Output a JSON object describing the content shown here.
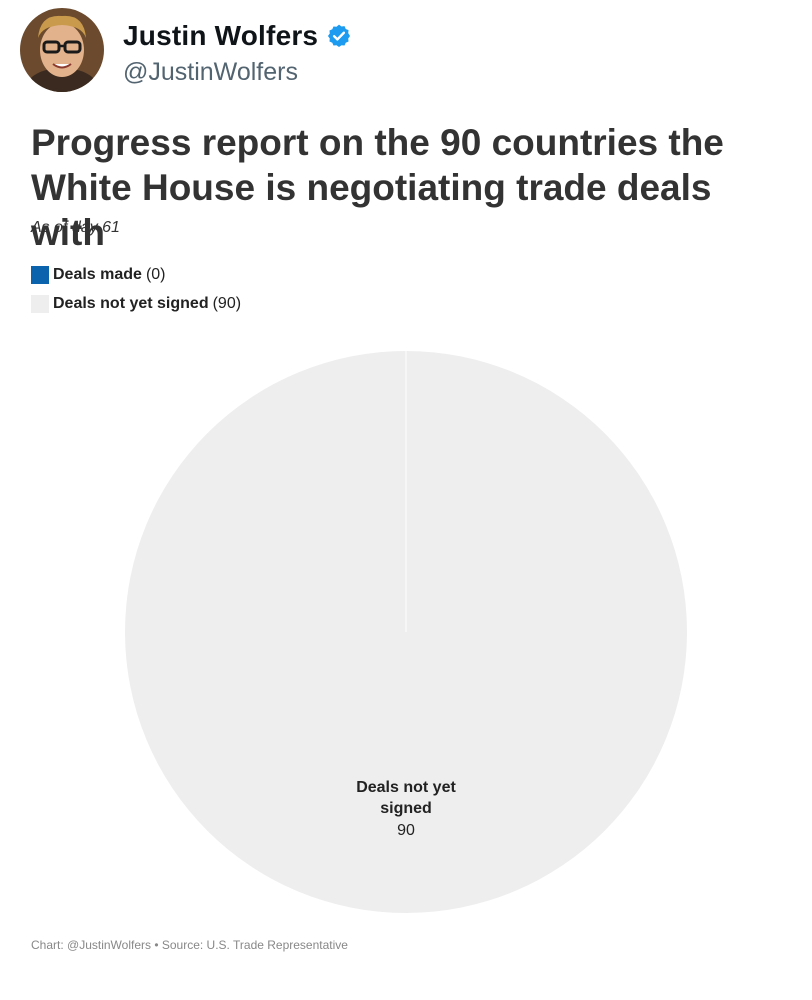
{
  "tweet": {
    "display_name": "Justin Wolfers",
    "handle": "@JustinWolfers",
    "avatar_icon": "profile-photo",
    "verified_icon": "verified-badge-icon",
    "verified_color": "#1d9bf0"
  },
  "chart": {
    "title": "Progress report on the 90 countries the\nWhite House is negotiating trade deals with",
    "subtitle": "As of day 61",
    "legend": [
      {
        "label": "Deals made",
        "count": "(0)",
        "color": "#0b62ad"
      },
      {
        "label": "Deals not yet signed",
        "count": "(90)",
        "color": "#eeeeee"
      }
    ],
    "slice_label": {
      "line1": "Deals not yet",
      "line2": "signed",
      "value": "90"
    },
    "footer": "Chart: @JustinWolfers • Source: U.S. Trade Representative"
  },
  "chart_data": {
    "type": "pie",
    "title": "Progress report on the 90 countries the White House is negotiating trade deals with",
    "subtitle": "As of day 61",
    "categories": [
      "Deals made",
      "Deals not yet signed"
    ],
    "values": [
      0,
      90
    ],
    "colors": [
      "#0b62ad",
      "#eeeeee"
    ],
    "legend_position": "top-left"
  }
}
